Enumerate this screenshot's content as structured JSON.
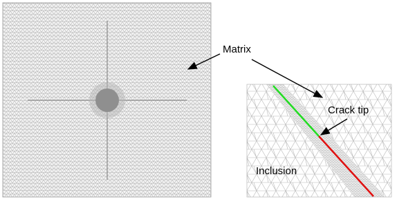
{
  "labels": {
    "matrix": "Matrix",
    "crack_tip": "Crack tip",
    "inclusion": "Inclusion"
  }
}
